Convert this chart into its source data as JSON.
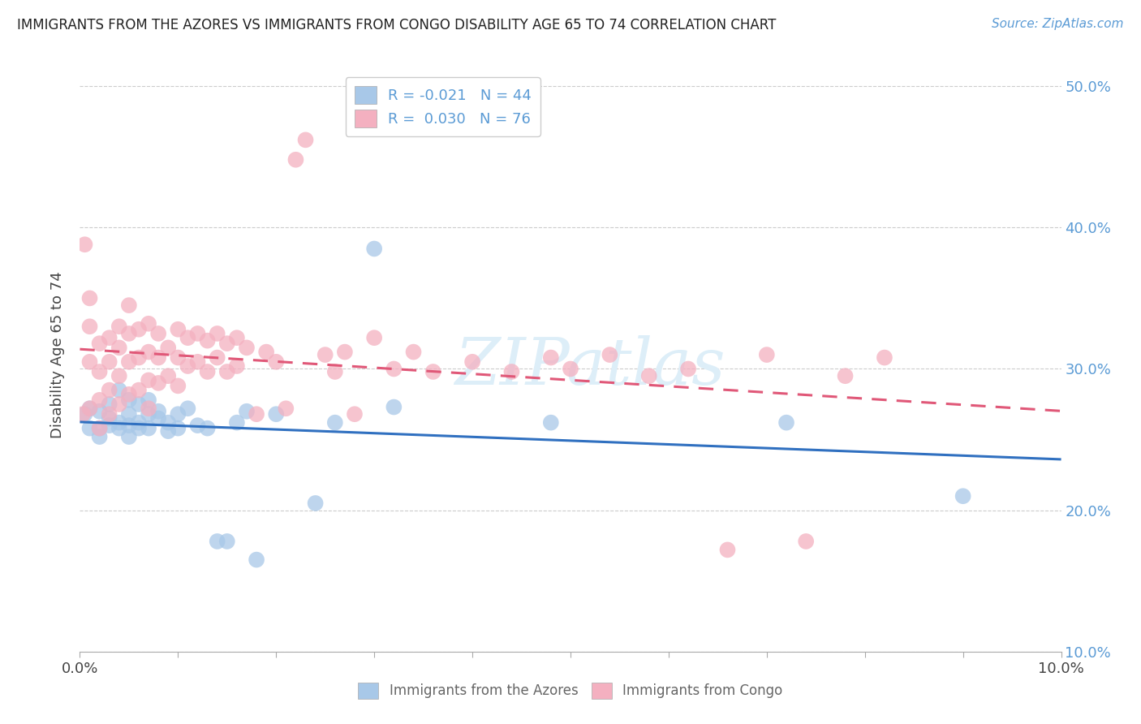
{
  "title": "IMMIGRANTS FROM THE AZORES VS IMMIGRANTS FROM CONGO DISABILITY AGE 65 TO 74 CORRELATION CHART",
  "source": "Source: ZipAtlas.com",
  "ylabel": "Disability Age 65 to 74",
  "xlim": [
    0.0,
    0.1
  ],
  "ylim": [
    0.1,
    0.52
  ],
  "ytick_positions": [
    0.1,
    0.2,
    0.3,
    0.4,
    0.5
  ],
  "ytick_labels": [
    "10.0%",
    "20.0%",
    "30.0%",
    "40.0%",
    "50.0%"
  ],
  "xtick_positions": [
    0.0,
    0.01,
    0.02,
    0.03,
    0.04,
    0.05,
    0.06,
    0.07,
    0.08,
    0.09,
    0.1
  ],
  "xtick_labels_show": [
    "0.0%",
    "",
    "",
    "",
    "",
    "",
    "",
    "",
    "",
    "",
    "10.0%"
  ],
  "legend1_label": "R = -0.021   N = 44",
  "legend2_label": "R =  0.030   N = 76",
  "legend1_color": "#a8c8e8",
  "legend2_color": "#f4b0c0",
  "line1_color": "#3070c0",
  "line2_color": "#e05878",
  "watermark_text": "ZIPatlas",
  "watermark_color": "#ddeef8",
  "azores_x": [
    0.0005,
    0.001,
    0.001,
    0.002,
    0.002,
    0.002,
    0.003,
    0.003,
    0.003,
    0.004,
    0.004,
    0.004,
    0.005,
    0.005,
    0.005,
    0.005,
    0.006,
    0.006,
    0.006,
    0.007,
    0.007,
    0.007,
    0.008,
    0.008,
    0.009,
    0.009,
    0.01,
    0.01,
    0.011,
    0.012,
    0.013,
    0.014,
    0.015,
    0.016,
    0.017,
    0.018,
    0.02,
    0.024,
    0.026,
    0.03,
    0.032,
    0.048,
    0.072,
    0.09
  ],
  "azores_y": [
    0.268,
    0.272,
    0.258,
    0.27,
    0.258,
    0.252,
    0.265,
    0.275,
    0.26,
    0.285,
    0.262,
    0.258,
    0.268,
    0.278,
    0.26,
    0.252,
    0.275,
    0.262,
    0.258,
    0.268,
    0.278,
    0.258,
    0.265,
    0.27,
    0.262,
    0.256,
    0.268,
    0.258,
    0.272,
    0.26,
    0.258,
    0.178,
    0.178,
    0.262,
    0.27,
    0.165,
    0.268,
    0.205,
    0.262,
    0.385,
    0.273,
    0.262,
    0.262,
    0.21
  ],
  "congo_x": [
    0.0003,
    0.0005,
    0.001,
    0.001,
    0.001,
    0.001,
    0.002,
    0.002,
    0.002,
    0.002,
    0.003,
    0.003,
    0.003,
    0.003,
    0.004,
    0.004,
    0.004,
    0.004,
    0.005,
    0.005,
    0.005,
    0.005,
    0.006,
    0.006,
    0.006,
    0.007,
    0.007,
    0.007,
    0.007,
    0.008,
    0.008,
    0.008,
    0.009,
    0.009,
    0.01,
    0.01,
    0.01,
    0.011,
    0.011,
    0.012,
    0.012,
    0.013,
    0.013,
    0.014,
    0.014,
    0.015,
    0.015,
    0.016,
    0.016,
    0.017,
    0.018,
    0.019,
    0.02,
    0.021,
    0.022,
    0.023,
    0.025,
    0.026,
    0.027,
    0.028,
    0.03,
    0.032,
    0.034,
    0.036,
    0.04,
    0.044,
    0.048,
    0.05,
    0.054,
    0.058,
    0.062,
    0.066,
    0.07,
    0.074,
    0.078,
    0.082
  ],
  "congo_y": [
    0.268,
    0.388,
    0.35,
    0.33,
    0.305,
    0.272,
    0.318,
    0.298,
    0.278,
    0.258,
    0.322,
    0.305,
    0.285,
    0.268,
    0.33,
    0.315,
    0.295,
    0.275,
    0.345,
    0.325,
    0.305,
    0.282,
    0.328,
    0.308,
    0.285,
    0.332,
    0.312,
    0.292,
    0.272,
    0.325,
    0.308,
    0.29,
    0.315,
    0.295,
    0.328,
    0.308,
    0.288,
    0.322,
    0.302,
    0.325,
    0.305,
    0.32,
    0.298,
    0.325,
    0.308,
    0.318,
    0.298,
    0.322,
    0.302,
    0.315,
    0.268,
    0.312,
    0.305,
    0.272,
    0.448,
    0.462,
    0.31,
    0.298,
    0.312,
    0.268,
    0.322,
    0.3,
    0.312,
    0.298,
    0.305,
    0.298,
    0.308,
    0.3,
    0.31,
    0.295,
    0.3,
    0.172,
    0.31,
    0.178,
    0.295,
    0.308
  ]
}
